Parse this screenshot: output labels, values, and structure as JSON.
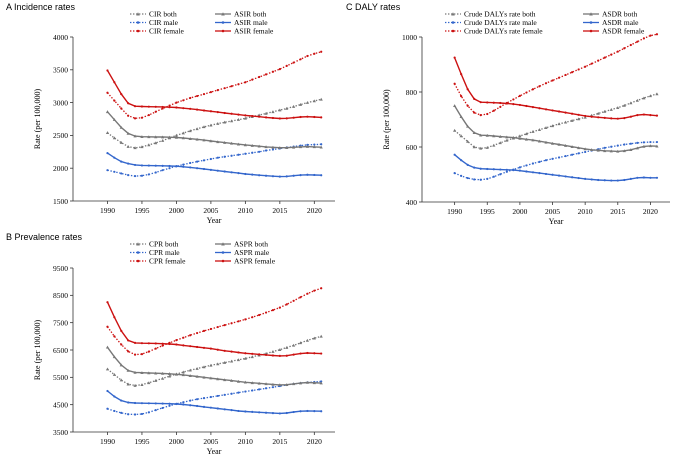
{
  "chart_data": [
    {
      "panel_letter": "A",
      "title": "Incidence rates",
      "type": "line",
      "xlabel": "Year",
      "ylabel": "Rate (per 100,000)",
      "xlim": [
        1985,
        2023
      ],
      "ylim": [
        1500,
        4000
      ],
      "xticks": [
        1990,
        1995,
        2000,
        2005,
        2010,
        2015,
        2020
      ],
      "yticks": [
        1500,
        2000,
        2500,
        3000,
        3500,
        4000
      ],
      "x": [
        1990,
        1991,
        1992,
        1993,
        1994,
        1995,
        1996,
        1997,
        1998,
        1999,
        2000,
        2001,
        2002,
        2003,
        2004,
        2005,
        2006,
        2007,
        2008,
        2009,
        2010,
        2011,
        2012,
        2013,
        2014,
        2015,
        2016,
        2017,
        2018,
        2019,
        2020,
        2021
      ],
      "series": [
        {
          "name": "CIR both",
          "color": "#777777",
          "style": "dotted",
          "marker": "triangle",
          "values": [
            2540,
            2460,
            2390,
            2330,
            2310,
            2325,
            2355,
            2385,
            2420,
            2460,
            2500,
            2535,
            2570,
            2600,
            2630,
            2655,
            2680,
            2700,
            2720,
            2740,
            2760,
            2785,
            2810,
            2835,
            2860,
            2885,
            2910,
            2940,
            2970,
            3000,
            3025,
            3050
          ]
        },
        {
          "name": "CIR male",
          "color": "#3366cc",
          "style": "dotted",
          "marker": "dot",
          "values": [
            1970,
            1945,
            1920,
            1895,
            1880,
            1885,
            1905,
            1935,
            1970,
            2000,
            2030,
            2055,
            2080,
            2100,
            2120,
            2140,
            2160,
            2175,
            2190,
            2205,
            2220,
            2235,
            2250,
            2270,
            2285,
            2300,
            2315,
            2330,
            2345,
            2355,
            2360,
            2365
          ]
        },
        {
          "name": "CIR female",
          "color": "#cc1111",
          "style": "dotted",
          "marker": "dot",
          "values": [
            3150,
            3030,
            2910,
            2800,
            2760,
            2770,
            2810,
            2860,
            2910,
            2955,
            3000,
            3035,
            3070,
            3100,
            3130,
            3160,
            3190,
            3220,
            3250,
            3280,
            3310,
            3350,
            3390,
            3430,
            3470,
            3510,
            3560,
            3610,
            3660,
            3710,
            3745,
            3775
          ]
        },
        {
          "name": "ASIR both",
          "color": "#777777",
          "style": "solid",
          "marker": "triangle",
          "values": [
            2860,
            2740,
            2620,
            2530,
            2490,
            2480,
            2478,
            2476,
            2475,
            2472,
            2468,
            2460,
            2450,
            2440,
            2428,
            2415,
            2402,
            2390,
            2378,
            2366,
            2355,
            2345,
            2335,
            2325,
            2318,
            2313,
            2312,
            2318,
            2325,
            2330,
            2325,
            2320
          ]
        },
        {
          "name": "ASIR male",
          "color": "#3366cc",
          "style": "solid",
          "marker": "dot",
          "values": [
            2230,
            2160,
            2100,
            2070,
            2050,
            2042,
            2040,
            2038,
            2036,
            2034,
            2030,
            2022,
            2012,
            2000,
            1988,
            1975,
            1962,
            1950,
            1937,
            1925,
            1912,
            1902,
            1893,
            1885,
            1878,
            1872,
            1875,
            1885,
            1895,
            1900,
            1897,
            1893
          ]
        },
        {
          "name": "ASIR female",
          "color": "#cc1111",
          "style": "solid",
          "marker": "dot",
          "values": [
            3490,
            3310,
            3130,
            2990,
            2945,
            2940,
            2938,
            2936,
            2934,
            2930,
            2925,
            2915,
            2905,
            2893,
            2880,
            2868,
            2855,
            2842,
            2830,
            2817,
            2805,
            2795,
            2785,
            2775,
            2765,
            2758,
            2760,
            2770,
            2780,
            2785,
            2780,
            2775
          ]
        }
      ]
    },
    {
      "panel_letter": "B",
      "title": "Prevalence rates",
      "type": "line",
      "xlabel": "Year",
      "ylabel": "Rate (per 100,000)",
      "xlim": [
        1985,
        2023
      ],
      "ylim": [
        3500,
        9500
      ],
      "xticks": [
        1990,
        1995,
        2000,
        2005,
        2010,
        2015,
        2020
      ],
      "yticks": [
        3500,
        4500,
        5500,
        6500,
        7500,
        8500,
        9500
      ],
      "x": [
        1990,
        1991,
        1992,
        1993,
        1994,
        1995,
        1996,
        1997,
        1998,
        1999,
        2000,
        2001,
        2002,
        2003,
        2004,
        2005,
        2006,
        2007,
        2008,
        2009,
        2010,
        2011,
        2012,
        2013,
        2014,
        2015,
        2016,
        2017,
        2018,
        2019,
        2020,
        2021
      ],
      "series": [
        {
          "name": "CPR both",
          "color": "#777777",
          "style": "dotted",
          "marker": "triangle",
          "values": [
            5800,
            5600,
            5400,
            5250,
            5200,
            5230,
            5300,
            5380,
            5460,
            5540,
            5620,
            5690,
            5760,
            5820,
            5880,
            5940,
            5990,
            6040,
            6090,
            6140,
            6190,
            6250,
            6310,
            6370,
            6440,
            6510,
            6590,
            6670,
            6760,
            6850,
            6930,
            7000
          ]
        },
        {
          "name": "CPR male",
          "color": "#3366cc",
          "style": "dotted",
          "marker": "dot",
          "values": [
            4350,
            4270,
            4200,
            4150,
            4140,
            4160,
            4220,
            4300,
            4380,
            4460,
            4530,
            4590,
            4650,
            4700,
            4740,
            4780,
            4820,
            4860,
            4900,
            4940,
            4980,
            5020,
            5060,
            5100,
            5140,
            5180,
            5220,
            5260,
            5290,
            5310,
            5330,
            5350
          ]
        },
        {
          "name": "CPR female",
          "color": "#cc1111",
          "style": "dotted",
          "marker": "dot",
          "values": [
            7350,
            7000,
            6700,
            6450,
            6330,
            6350,
            6440,
            6550,
            6660,
            6760,
            6860,
            6950,
            7040,
            7120,
            7200,
            7270,
            7340,
            7410,
            7480,
            7550,
            7620,
            7700,
            7780,
            7870,
            7960,
            8050,
            8170,
            8300,
            8430,
            8560,
            8670,
            8760
          ]
        },
        {
          "name": "ASPR both",
          "color": "#777777",
          "style": "solid",
          "marker": "triangle",
          "values": [
            6600,
            6250,
            5950,
            5750,
            5680,
            5670,
            5660,
            5650,
            5640,
            5630,
            5610,
            5590,
            5560,
            5530,
            5500,
            5470,
            5440,
            5410,
            5380,
            5350,
            5320,
            5300,
            5280,
            5260,
            5240,
            5225,
            5230,
            5260,
            5290,
            5310,
            5300,
            5290
          ]
        },
        {
          "name": "ASPR male",
          "color": "#3366cc",
          "style": "solid",
          "marker": "dot",
          "values": [
            5000,
            4800,
            4650,
            4580,
            4560,
            4555,
            4550,
            4545,
            4540,
            4535,
            4525,
            4505,
            4480,
            4450,
            4420,
            4390,
            4360,
            4330,
            4300,
            4270,
            4250,
            4235,
            4220,
            4205,
            4190,
            4180,
            4195,
            4230,
            4260,
            4270,
            4265,
            4260
          ]
        },
        {
          "name": "ASPR female",
          "color": "#cc1111",
          "style": "solid",
          "marker": "dot",
          "values": [
            8250,
            7700,
            7200,
            6850,
            6760,
            6750,
            6745,
            6740,
            6730,
            6720,
            6700,
            6670,
            6640,
            6610,
            6580,
            6550,
            6510,
            6470,
            6440,
            6410,
            6380,
            6360,
            6340,
            6320,
            6300,
            6285,
            6290,
            6330,
            6370,
            6390,
            6380,
            6370
          ]
        }
      ]
    },
    {
      "panel_letter": "C",
      "title": "DALY rates",
      "type": "line",
      "xlabel": "Year",
      "ylabel": "Rate (per 100,000)",
      "xlim": [
        1985,
        2023
      ],
      "ylim": [
        400,
        1000
      ],
      "xticks": [
        1990,
        1995,
        2000,
        2005,
        2010,
        2015,
        2020
      ],
      "yticks": [
        400,
        600,
        800,
        1000
      ],
      "x": [
        1990,
        1991,
        1992,
        1993,
        1994,
        1995,
        1996,
        1997,
        1998,
        1999,
        2000,
        2001,
        2002,
        2003,
        2004,
        2005,
        2006,
        2007,
        2008,
        2009,
        2010,
        2011,
        2012,
        2013,
        2014,
        2015,
        2016,
        2017,
        2018,
        2019,
        2020,
        2021
      ],
      "series": [
        {
          "name": "Crude DALYs rate both",
          "color": "#777777",
          "style": "dotted",
          "marker": "triangle",
          "values": [
            660,
            640,
            620,
            600,
            595,
            598,
            606,
            615,
            624,
            632,
            640,
            648,
            656,
            663,
            670,
            677,
            684,
            690,
            696,
            702,
            708,
            715,
            722,
            729,
            736,
            743,
            751,
            760,
            769,
            778,
            786,
            793
          ]
        },
        {
          "name": "Crude DALYs rate male",
          "color": "#3366cc",
          "style": "dotted",
          "marker": "dot",
          "values": [
            505,
            495,
            487,
            482,
            481,
            484,
            492,
            501,
            510,
            518,
            526,
            533,
            540,
            546,
            552,
            557,
            562,
            567,
            572,
            577,
            582,
            587,
            592,
            597,
            601,
            605,
            609,
            612,
            615,
            617,
            618,
            618
          ]
        },
        {
          "name": "Crude DALYs rate female",
          "color": "#cc1111",
          "style": "dotted",
          "marker": "dot",
          "values": [
            830,
            785,
            750,
            725,
            716,
            720,
            732,
            746,
            760,
            773,
            786,
            798,
            810,
            821,
            832,
            842,
            852,
            862,
            872,
            882,
            892,
            903,
            914,
            925,
            936,
            947,
            959,
            971,
            983,
            995,
            1005,
            1010
          ]
        },
        {
          "name": "ASDR both",
          "color": "#777777",
          "style": "solid",
          "marker": "triangle",
          "values": [
            750,
            710,
            675,
            652,
            643,
            642,
            640,
            638,
            636,
            634,
            631,
            628,
            625,
            621,
            617,
            613,
            609,
            605,
            601,
            597,
            593,
            590,
            588,
            586,
            585,
            584,
            586,
            590,
            596,
            602,
            604,
            603
          ]
        },
        {
          "name": "ASDR male",
          "color": "#3366cc",
          "style": "solid",
          "marker": "dot",
          "values": [
            572,
            552,
            535,
            525,
            521,
            520,
            519,
            518,
            517,
            516,
            514,
            511,
            508,
            505,
            502,
            499,
            496,
            493,
            490,
            487,
            484,
            482,
            480,
            479,
            478,
            478,
            480,
            484,
            488,
            489,
            488,
            488
          ]
        },
        {
          "name": "ASDR female",
          "color": "#cc1111",
          "style": "solid",
          "marker": "dot",
          "values": [
            925,
            865,
            810,
            775,
            763,
            762,
            761,
            760,
            758,
            756,
            753,
            749,
            745,
            741,
            737,
            733,
            729,
            725,
            721,
            717,
            713,
            710,
            708,
            706,
            704,
            703,
            705,
            710,
            716,
            718,
            716,
            714
          ]
        }
      ]
    }
  ]
}
